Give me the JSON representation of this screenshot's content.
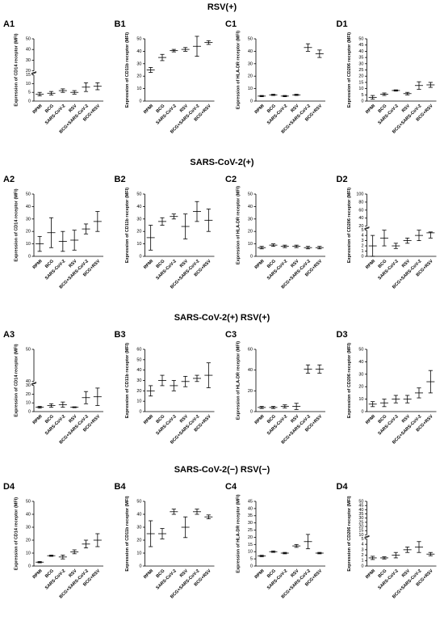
{
  "sections": [
    "RSV(+)",
    "SARS-CoV-2(+)",
    "SARS-CoV-2(+) RSV(+)",
    "SARS-CoV-2(−) RSV(−)"
  ],
  "chart_data": [
    {
      "type": "errorbar",
      "title": "A1",
      "y_label": "Expression of CD14 receptor (MFI)",
      "categories": [
        "RPMI",
        "BCG",
        "SARS-CoV-2",
        "RSV",
        "BCG+SARS-CoV-2",
        "BCG+RSV"
      ],
      "values": [
        4,
        4.5,
        6,
        5,
        8,
        8.5
      ],
      "errors": [
        1,
        1,
        1,
        1,
        2.5,
        2
      ],
      "ylim": [
        0,
        50
      ],
      "ybreak": [
        15,
        20
      ],
      "yticks": [
        0,
        5,
        10,
        15,
        20,
        30,
        40,
        50
      ],
      "color": "#000000"
    },
    {
      "type": "errorbar",
      "title": "B1",
      "y_label": "Expression of CD11b receptor (MFI)",
      "categories": [
        "RPMI",
        "BCG",
        "SARS-CoV-2",
        "RSV",
        "BCG+SARS-CoV-2",
        "BCG+RSV"
      ],
      "values": [
        25,
        35,
        40.5,
        41.5,
        44,
        47
      ],
      "errors": [
        2,
        2.5,
        1,
        1.5,
        8,
        1.5
      ],
      "ylim": [
        0,
        50
      ],
      "yticks": [
        0,
        10,
        20,
        30,
        40,
        50
      ],
      "color": "#000000"
    },
    {
      "type": "errorbar",
      "title": "C1",
      "y_label": "Expression of HLA-DR receptor (MFI)",
      "categories": [
        "RPMI",
        "BCG",
        "SARS-CoV-2",
        "RSV",
        "BCG+SARS-CoV-2",
        "BCG+RSV"
      ],
      "values": [
        4,
        5,
        4,
        5,
        43,
        38
      ],
      "errors": [
        0.5,
        0.5,
        0.5,
        0.5,
        3,
        3
      ],
      "ylim": [
        0,
        50
      ],
      "yticks": [
        0,
        10,
        20,
        30,
        40,
        50
      ],
      "color": "#000000"
    },
    {
      "type": "errorbar",
      "title": "D1",
      "y_label": "Expression of CD206 receptor (MFI)",
      "categories": [
        "RPMI",
        "BCG",
        "SARS-CoV-2",
        "RSV",
        "BCG+SARS-CoV-2",
        "BCG+RSV"
      ],
      "values": [
        3,
        5.5,
        8.5,
        6,
        12.5,
        13
      ],
      "errors": [
        1.5,
        1,
        0.5,
        1,
        3,
        2
      ],
      "ylim": [
        0,
        50
      ],
      "yticks": [
        0,
        5,
        10,
        15,
        20,
        25,
        30,
        35,
        40,
        45,
        50
      ],
      "color": "#000000"
    },
    {
      "type": "errorbar",
      "title": "A2",
      "y_label": "Expression of CD14 receptor (MFI)",
      "categories": [
        "RPMI",
        "BCG",
        "SARS-CoV-2",
        "RSV",
        "BCG+SARS-CoV-2",
        "BCG+RSV"
      ],
      "values": [
        10,
        19,
        12,
        13,
        22,
        28
      ],
      "errors": [
        6,
        12,
        8,
        8,
        4,
        8
      ],
      "ylim": [
        0,
        50
      ],
      "yticks": [
        0,
        10,
        20,
        30,
        40,
        50
      ],
      "color": "#000000"
    },
    {
      "type": "errorbar",
      "title": "B2",
      "y_label": "Expression of CD11b receptor (MFI)",
      "categories": [
        "RPMI",
        "BCG",
        "SARS-CoV-2",
        "RSV",
        "BCG+SARS-CoV-2",
        "BCG+RSV"
      ],
      "values": [
        15,
        28,
        32,
        24,
        36,
        29
      ],
      "errors": [
        10,
        3,
        2,
        10,
        8,
        9
      ],
      "ylim": [
        0,
        50
      ],
      "yticks": [
        0,
        10,
        20,
        30,
        40,
        50
      ],
      "color": "#000000"
    },
    {
      "type": "errorbar",
      "title": "C2",
      "y_label": "Expression of HLA-DR receptor (MFI)",
      "categories": [
        "RPMI",
        "BCG",
        "SARS-CoV-2",
        "RSV",
        "BCG+SARS-CoV-2",
        "BCG+RSV"
      ],
      "values": [
        7,
        9,
        8,
        8,
        7,
        7
      ],
      "errors": [
        1,
        1,
        1,
        1,
        1,
        1
      ],
      "ylim": [
        0,
        50
      ],
      "yticks": [
        0,
        10,
        20,
        30,
        40,
        50
      ],
      "color": "#000000"
    },
    {
      "type": "errorbar",
      "title": "D2",
      "y_label": "Expression of CD206 receptor (MFI)",
      "categories": [
        "RPMI",
        "BCG",
        "SARS-CoV-2",
        "RSV",
        "BCG+SARS-CoV-2",
        "BCG+RSV"
      ],
      "values": [
        2,
        3.5,
        2,
        3,
        4,
        4.5
      ],
      "errors": [
        2,
        1.5,
        0.5,
        0.5,
        1,
        1
      ],
      "ylim": [
        0,
        100
      ],
      "ybreak": [
        5,
        20
      ],
      "yticks": [
        0,
        1,
        2,
        3,
        4,
        5,
        20,
        40,
        60,
        80,
        100
      ],
      "color": "#000000"
    },
    {
      "type": "errorbar",
      "title": "A3",
      "y_label": "Expression of CD14 receptor (MFI)",
      "categories": [
        "RPMI",
        "BCG",
        "SARS-CoV-2",
        "RSV",
        "BCG+SARS-CoV-2",
        "BCG+RSV"
      ],
      "values": [
        5,
        7,
        8,
        5,
        16,
        17
      ],
      "errors": [
        1,
        2,
        3,
        0.5,
        7,
        10
      ],
      "ylim": [
        0,
        50
      ],
      "ybreak": [
        30,
        40
      ],
      "yticks": [
        0,
        10,
        20,
        30,
        40,
        50
      ],
      "color": "#000000"
    },
    {
      "type": "errorbar",
      "title": "B3",
      "y_label": "Expression of CD11b receptor (MFI)",
      "categories": [
        "RPMI",
        "BCG",
        "SARS-CoV-2",
        "RSV",
        "BCG+SARS-CoV-2",
        "BCG+RSV"
      ],
      "values": [
        20,
        30,
        25,
        29,
        32,
        35
      ],
      "errors": [
        5,
        5,
        5,
        5,
        3,
        12
      ],
      "ylim": [
        0,
        60
      ],
      "yticks": [
        0,
        10,
        20,
        30,
        40,
        50,
        60
      ],
      "color": "#000000"
    },
    {
      "type": "errorbar",
      "title": "C3",
      "y_label": "Expression of HLA-DR receptor (MFI)",
      "categories": [
        "RPMI",
        "BCG",
        "SARS-CoV-2",
        "RSV",
        "BCG+SARS-CoV-2",
        "BCG+RSV"
      ],
      "values": [
        4,
        4,
        5,
        5,
        41,
        41
      ],
      "errors": [
        1,
        1,
        1.5,
        3,
        4,
        4
      ],
      "ylim": [
        0,
        60
      ],
      "yticks": [
        0,
        20,
        40,
        60
      ],
      "color": "#000000"
    },
    {
      "type": "errorbar",
      "title": "D3",
      "y_label": "Expression of CD206 receptor (MFI)",
      "categories": [
        "RPMI",
        "BCG",
        "SARS-CoV-2",
        "RSV",
        "BCG+SARS-CoV-2",
        "BCG+RSV"
      ],
      "values": [
        6,
        7,
        10,
        10,
        15,
        24
      ],
      "errors": [
        2,
        3,
        3,
        3,
        4,
        9
      ],
      "ylim": [
        0,
        50
      ],
      "yticks": [
        0,
        10,
        20,
        30,
        40,
        50
      ],
      "color": "#000000"
    },
    {
      "type": "errorbar",
      "title": "D4",
      "y_label": "Expression of CD14 receptor (MFI)",
      "categories": [
        "RPMI",
        "BCG",
        "SARS-CoV-2",
        "RSV",
        "BCG+SARS-CoV-2",
        "BCG+RSV"
      ],
      "values": [
        3,
        8,
        7,
        11,
        17,
        20
      ],
      "errors": [
        0.5,
        0.5,
        1.5,
        1.5,
        3,
        5
      ],
      "ylim": [
        0,
        50
      ],
      "yticks": [
        0,
        10,
        20,
        30,
        40,
        50
      ],
      "color": "#000000"
    },
    {
      "type": "errorbar",
      "title": "B4",
      "y_label": "Expression of CD11b receptor (MFI)",
      "categories": [
        "RPMI",
        "BCG",
        "SARS-CoV-2",
        "RSV",
        "BCG+SARS-CoV-2",
        "BCG+RSV"
      ],
      "values": [
        25,
        25,
        42,
        30,
        42,
        38
      ],
      "errors": [
        10,
        4,
        2,
        8,
        2,
        1.5
      ],
      "ylim": [
        0,
        50
      ],
      "yticks": [
        0,
        10,
        20,
        30,
        40,
        50
      ],
      "color": "#000000"
    },
    {
      "type": "errorbar",
      "title": "C4",
      "y_label": "Expression of HLA-DR receptor (MFI)",
      "categories": [
        "RPMI",
        "BCG",
        "SARS-CoV-2",
        "RSV",
        "BCG+SARS-CoV-2",
        "BCG+RSV"
      ],
      "values": [
        7,
        10,
        9,
        14,
        17,
        9
      ],
      "errors": [
        0.5,
        0.5,
        0.5,
        1,
        5,
        0.5
      ],
      "ylim": [
        0,
        45
      ],
      "yticks": [
        0,
        5,
        10,
        15,
        20,
        25,
        30,
        35,
        40,
        45
      ],
      "color": "#000000"
    },
    {
      "type": "errorbar",
      "title": "D4",
      "y_label": "Expression of CD206 receptor (MFI)",
      "categories": [
        "RPMI",
        "BCG",
        "SARS-CoV-2",
        "RSV",
        "BCG+SARS-CoV-2",
        "BCG+RSV"
      ],
      "values": [
        1.5,
        1.5,
        2,
        3,
        3.5,
        2.2
      ],
      "errors": [
        0.3,
        0.2,
        0.5,
        0.5,
        1,
        0.3
      ],
      "ylim": [
        0,
        50
      ],
      "ybreak": [
        5,
        10
      ],
      "yticks": [
        0,
        1,
        2,
        3,
        4,
        5,
        10,
        15,
        20,
        25,
        30,
        35,
        40,
        45,
        50
      ],
      "color": "#000000"
    }
  ]
}
